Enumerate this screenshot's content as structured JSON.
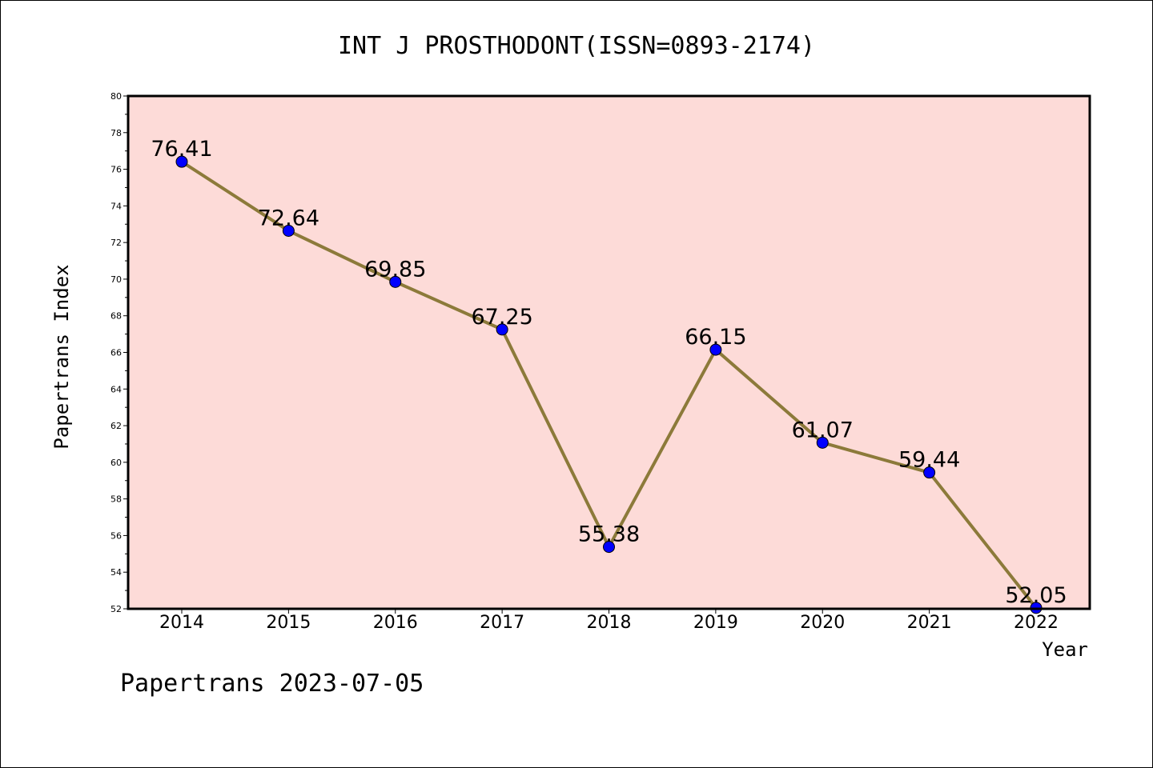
{
  "chart_data": {
    "type": "line",
    "title": "INT J PROSTHODONT(ISSN=0893-2174)",
    "xlabel": "Year",
    "ylabel": "Papertrans Index",
    "categories": [
      "2014",
      "2015",
      "2016",
      "2017",
      "2018",
      "2019",
      "2020",
      "2021",
      "2022"
    ],
    "values": [
      76.41,
      72.64,
      69.85,
      67.25,
      55.38,
      66.15,
      61.07,
      59.44,
      52.05
    ],
    "data_labels": [
      "76.41",
      "72.64",
      "69.85",
      "67.25",
      "55.38",
      "66.15",
      "61.07",
      "59.44",
      "52.05"
    ],
    "ylim": [
      52,
      80
    ],
    "yticks": [
      "52",
      "54",
      "56",
      "58",
      "60",
      "62",
      "64",
      "66",
      "68",
      "70",
      "72",
      "74",
      "76",
      "78",
      "80"
    ],
    "grid": false,
    "colors": {
      "plot_background": "#fddbd8",
      "line": "#8c7a3a",
      "marker": "#0000ff"
    }
  },
  "footer": {
    "watermark": "Papertrans 2023-07-05"
  }
}
